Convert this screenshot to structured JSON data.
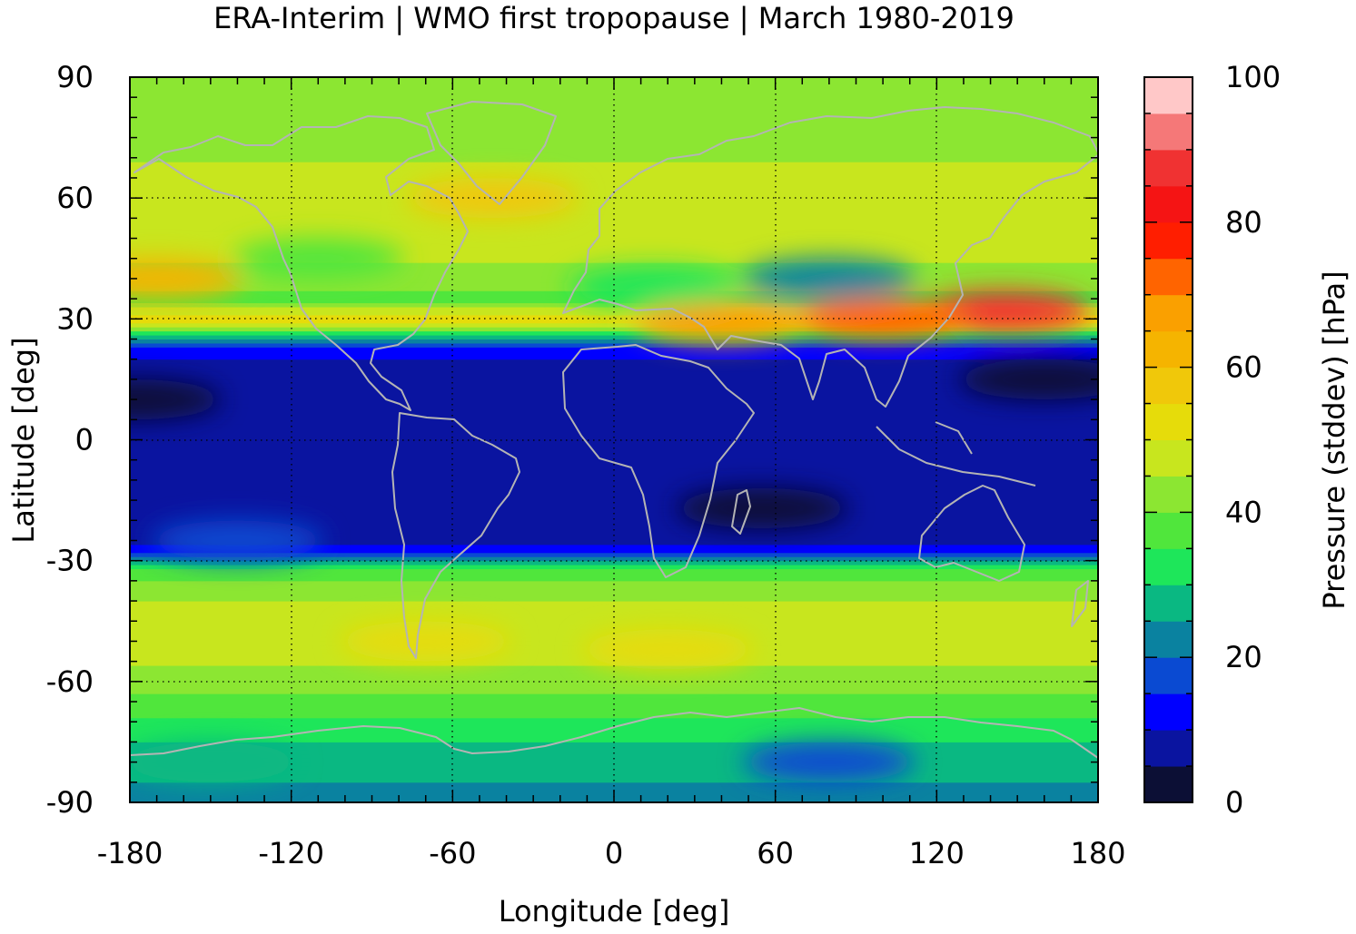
{
  "chart_data": {
    "type": "heatmap",
    "title": "ERA-Interim | WMO first tropopause | March 1980-2019",
    "xlabel": "Longitude [deg]",
    "ylabel": "Latitude [deg]",
    "xlim": [
      -180,
      180
    ],
    "ylim": [
      -90,
      90
    ],
    "x_ticks": [
      "-180",
      "-120",
      "-60",
      "0",
      "60",
      "120",
      "180"
    ],
    "y_ticks": [
      "-90",
      "-60",
      "-30",
      "0",
      "30",
      "60",
      "90"
    ],
    "x_tick_values": [
      -180,
      -120,
      -60,
      0,
      60,
      120,
      180
    ],
    "y_tick_values": [
      -90,
      -60,
      -30,
      0,
      30,
      60,
      90
    ],
    "grid": true,
    "colorbar": {
      "label": "Pressure (stddev) [hPa]",
      "range": [
        0,
        100
      ],
      "tick_labels": [
        "0",
        "20",
        "40",
        "60",
        "80",
        "100"
      ],
      "tick_values": [
        0,
        20,
        40,
        60,
        80,
        100
      ],
      "levels": [
        {
          "from": 0,
          "to": 5,
          "color": "#0c0f35"
        },
        {
          "from": 5,
          "to": 10,
          "color": "#0a14a0"
        },
        {
          "from": 10,
          "to": 15,
          "color": "#0000ff"
        },
        {
          "from": 15,
          "to": 20,
          "color": "#0a4ad2"
        },
        {
          "from": 20,
          "to": 25,
          "color": "#0a82a0"
        },
        {
          "from": 25,
          "to": 30,
          "color": "#0ab882"
        },
        {
          "from": 30,
          "to": 35,
          "color": "#1ee65a"
        },
        {
          "from": 35,
          "to": 40,
          "color": "#50e63c"
        },
        {
          "from": 40,
          "to": 45,
          "color": "#8ce632"
        },
        {
          "from": 45,
          "to": 50,
          "color": "#c8e61e"
        },
        {
          "from": 50,
          "to": 55,
          "color": "#e6dc0a"
        },
        {
          "from": 55,
          "to": 60,
          "color": "#f0c80a"
        },
        {
          "from": 60,
          "to": 65,
          "color": "#f5b400"
        },
        {
          "from": 65,
          "to": 70,
          "color": "#faa000"
        },
        {
          "from": 70,
          "to": 75,
          "color": "#ff6400"
        },
        {
          "from": 75,
          "to": 80,
          "color": "#ff1e00"
        },
        {
          "from": 80,
          "to": 85,
          "color": "#f51414"
        },
        {
          "from": 85,
          "to": 90,
          "color": "#f03232"
        },
        {
          "from": 90,
          "to": 95,
          "color": "#f57878"
        },
        {
          "from": 95,
          "to": 100,
          "color": "#ffc8c8"
        }
      ]
    },
    "zonal_mean_profile": {
      "lat": [
        -90,
        -85,
        -80,
        -75,
        -70,
        -65,
        -60,
        -55,
        -50,
        -45,
        -40,
        -35,
        -31,
        -28,
        -25,
        -20,
        -15,
        -10,
        -5,
        0,
        5,
        10,
        15,
        20,
        23,
        25,
        27,
        29,
        31,
        35,
        40,
        45,
        50,
        55,
        60,
        65,
        70,
        75,
        80,
        85,
        90
      ],
      "value": [
        22,
        25,
        27,
        30,
        34,
        38,
        42,
        46,
        49,
        47,
        45,
        40,
        32,
        14,
        9,
        8,
        7,
        8,
        8,
        8,
        8,
        8,
        8,
        10,
        14,
        22,
        38,
        52,
        50,
        38,
        42,
        46,
        47,
        46,
        48,
        48,
        44,
        42,
        40,
        40,
        40
      ]
    },
    "regional_features": [
      {
        "lon": 145,
        "lat": 32,
        "value": 85
      },
      {
        "lon": 100,
        "lat": 30,
        "value": 72
      },
      {
        "lon": 40,
        "lat": 29,
        "value": 65
      },
      {
        "lon": -170,
        "lat": 40,
        "value": 60
      },
      {
        "lon": -45,
        "lat": 60,
        "value": 57
      },
      {
        "lon": 80,
        "lat": 40,
        "value": 22
      },
      {
        "lon": 15,
        "lat": 38,
        "value": 32
      },
      {
        "lon": -110,
        "lat": 45,
        "value": 36
      },
      {
        "lon": 55,
        "lat": -17,
        "value": 4
      },
      {
        "lon": -178,
        "lat": 10,
        "value": 4
      },
      {
        "lon": 160,
        "lat": 15,
        "value": 4
      },
      {
        "lon": -140,
        "lat": -25,
        "value": 17
      },
      {
        "lon": -70,
        "lat": -50,
        "value": 54
      },
      {
        "lon": 20,
        "lat": -52,
        "value": 54
      },
      {
        "lon": 80,
        "lat": -80,
        "value": 19
      },
      {
        "lon": -150,
        "lat": -80,
        "value": 28
      }
    ],
    "coastline_color": "#b4b4b4"
  }
}
